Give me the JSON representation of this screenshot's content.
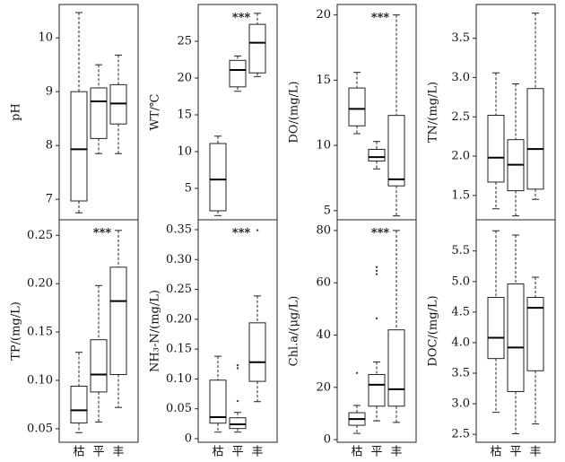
{
  "chart_data": [
    {
      "type": "box",
      "ylabel": "pH",
      "categories": [
        null,
        null,
        null
      ],
      "boxes": [
        {
          "min": 6.75,
          "q1": 6.97,
          "median": 7.93,
          "q3": 9.0,
          "max": 10.47
        },
        {
          "min": 7.85,
          "q1": 8.13,
          "median": 8.82,
          "q3": 9.07,
          "max": 9.5
        },
        {
          "min": 7.85,
          "q1": 8.4,
          "median": 8.78,
          "q3": 9.13,
          "max": 9.68
        }
      ],
      "ylim": [
        6.62,
        10.62
      ],
      "yticks": [
        7,
        8,
        9,
        10
      ]
    },
    {
      "type": "box",
      "ylabel": "WT/℃",
      "annotation": "***",
      "categories": [
        null,
        null,
        null
      ],
      "boxes": [
        {
          "min": 1.3,
          "q1": 1.95,
          "median": 6.2,
          "q3": 11.1,
          "max": 12.1
        },
        {
          "min": 18.2,
          "q1": 18.8,
          "median": 21.1,
          "q3": 22.4,
          "max": 23.0
        },
        {
          "min": 20.2,
          "q1": 20.7,
          "median": 24.8,
          "q3": 27.3,
          "max": 28.8
        }
      ],
      "ylim": [
        0.73,
        30
      ],
      "yticks": [
        5,
        10,
        15,
        20,
        25
      ]
    },
    {
      "type": "box",
      "ylabel": "DO/(mg/L)",
      "annotation": "***",
      "categories": [
        null,
        null,
        null
      ],
      "boxes": [
        {
          "min": 10.9,
          "q1": 11.5,
          "median": 12.8,
          "q3": 14.4,
          "max": 15.6
        },
        {
          "min": 8.2,
          "q1": 8.8,
          "median": 9.1,
          "q3": 9.7,
          "max": 10.3
        },
        {
          "min": 4.6,
          "q1": 6.9,
          "median": 7.4,
          "q3": 12.3,
          "max": 20
        }
      ],
      "ylim": [
        4.3,
        20.8
      ],
      "yticks": [
        5,
        10,
        15,
        20
      ]
    },
    {
      "type": "box",
      "ylabel": "TN/(mg/L)",
      "categories": [
        null,
        null,
        null
      ],
      "boxes": [
        {
          "min": 1.33,
          "q1": 1.67,
          "median": 1.98,
          "q3": 2.52,
          "max": 3.06
        },
        {
          "min": 1.24,
          "q1": 1.56,
          "median": 1.89,
          "q3": 2.21,
          "max": 2.92
        },
        {
          "min": 1.45,
          "q1": 1.58,
          "median": 2.09,
          "q3": 2.86,
          "max": 3.82
        }
      ],
      "ylim": [
        1.19,
        3.93
      ],
      "yticks": [
        1.5,
        {
          "value": 2,
          "label": "2.0"
        },
        2.5,
        {
          "value": 3,
          "label": "3.0"
        },
        3.5
      ]
    },
    {
      "type": "box",
      "ylabel": "TP/(mg/L)",
      "annotation": "***",
      "categories": [
        "枯",
        "平",
        "丰"
      ],
      "boxes": [
        {
          "min": 0.046,
          "q1": 0.056,
          "median": 0.069,
          "q3": 0.094,
          "max": 0.129
        },
        {
          "min": 0.057,
          "q1": 0.088,
          "median": 0.106,
          "q3": 0.142,
          "max": 0.198
        },
        {
          "min": 0.072,
          "q1": 0.106,
          "median": 0.182,
          "q3": 0.217,
          "max": 0.255
        }
      ],
      "ylim": [
        0.036,
        0.266
      ],
      "yticks": [
        0.05,
        {
          "value": 0.1,
          "label": "0.10"
        },
        0.15,
        {
          "value": 0.2,
          "label": "0.20"
        },
        0.25
      ]
    },
    {
      "type": "box",
      "ylabel": "NH₃-N/(mg/L)",
      "annotation": "***",
      "categories": [
        "枯",
        "平",
        "丰"
      ],
      "boxes": [
        {
          "min": 0.011,
          "q1": 0.026,
          "median": 0.036,
          "q3": 0.098,
          "max": 0.138
        },
        {
          "min": 0.011,
          "q1": 0.017,
          "median": 0.024,
          "q3": 0.035,
          "max": 0.044,
          "outliers": [
            0.123,
            0.118,
            0.063
          ]
        },
        {
          "min": 0.062,
          "q1": 0.096,
          "median": 0.128,
          "q3": 0.194,
          "max": 0.239,
          "outliers": [
            0.349
          ]
        }
      ],
      "ylim": [
        -0.006,
        0.3665
      ],
      "yticks": [
        0,
        {
          "value": 0.05,
          "label": "0.05"
        },
        {
          "value": 0.1,
          "label": "0.10"
        },
        0.15,
        {
          "value": 0.2,
          "label": "0.20"
        },
        0.25,
        {
          "value": 0.3,
          "label": "0.30"
        },
        0.35
      ]
    },
    {
      "type": "box",
      "ylabel": "Chl.a/(μg/L)",
      "annotation": "***",
      "categories": [
        "枯",
        "平",
        "丰"
      ],
      "boxes": [
        {
          "min": 2.4,
          "q1": 5.5,
          "median": 7.9,
          "q3": 10.3,
          "max": 13.1,
          "outliers": [
            25.5
          ]
        },
        {
          "min": 7.2,
          "q1": 12.8,
          "median": 21.0,
          "q3": 24.9,
          "max": 29.7,
          "outliers": [
            66,
            64.6,
            63.3,
            46.4
          ]
        },
        {
          "min": 6.6,
          "q1": 12.8,
          "median": 19.3,
          "q3": 42,
          "max": 80
        }
      ],
      "ylim": [
        -1,
        84.1
      ],
      "yticks": [
        0,
        20,
        40,
        60,
        80
      ]
    },
    {
      "type": "box",
      "ylabel": "DOC/(mg/L)",
      "categories": [
        "枯",
        "平",
        "丰"
      ],
      "boxes": [
        {
          "min": 2.86,
          "q1": 3.74,
          "median": 4.08,
          "q3": 4.74,
          "max": 5.83
        },
        {
          "min": 2.51,
          "q1": 3.2,
          "median": 3.92,
          "q3": 4.96,
          "max": 5.76
        },
        {
          "min": 2.67,
          "q1": 3.54,
          "median": 4.57,
          "q3": 4.74,
          "max": 5.07
        }
      ],
      "ylim": [
        2.37,
        6.01
      ],
      "yticks": [
        2.5,
        {
          "value": 3,
          "label": "3.0"
        },
        3.5,
        {
          "value": 4,
          "label": "4.0"
        },
        4.5,
        {
          "value": 5,
          "label": "5.0"
        },
        5.5
      ]
    }
  ]
}
